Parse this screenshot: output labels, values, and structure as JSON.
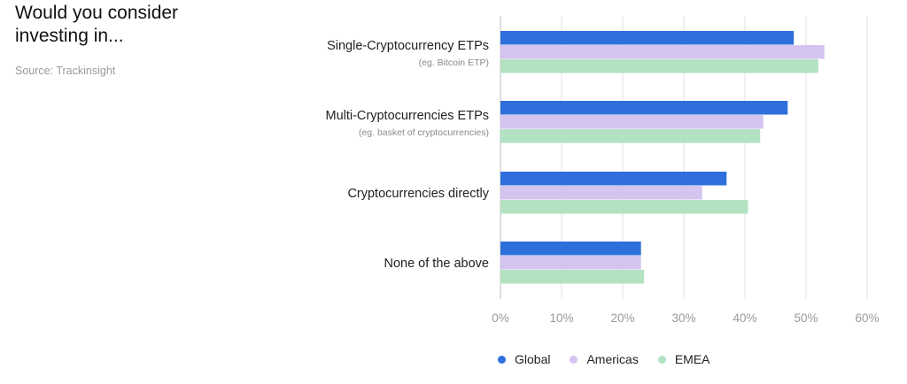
{
  "header": {
    "title": "Would you consider investing in...",
    "source": "Source: Trackinsight"
  },
  "chart_data": {
    "type": "bar",
    "orientation": "horizontal",
    "categories": [
      "Single-Cryptocurrency ETPs",
      "Multi-Cryptocurrencies ETPs",
      "Cryptocurrencies directly",
      "None of the above"
    ],
    "category_subtitles": [
      "(eg. Bitcoin ETP)",
      "(eg. basket of cryptocurrencies)",
      "",
      ""
    ],
    "series": [
      {
        "name": "Global",
        "color": "#2f6fdb",
        "values": [
          48,
          47,
          37,
          23
        ]
      },
      {
        "name": "Americas",
        "color": "#d3c4f0",
        "values": [
          53,
          43,
          33,
          23
        ]
      },
      {
        "name": "EMEA",
        "color": "#b2e2c2",
        "values": [
          52,
          42.5,
          40.5,
          23.5
        ]
      }
    ],
    "xlim": [
      0,
      60
    ],
    "xticks": [
      "0%",
      "10%",
      "20%",
      "30%",
      "40%",
      "50%",
      "60%"
    ],
    "grid": true,
    "legend_position": "bottom"
  }
}
